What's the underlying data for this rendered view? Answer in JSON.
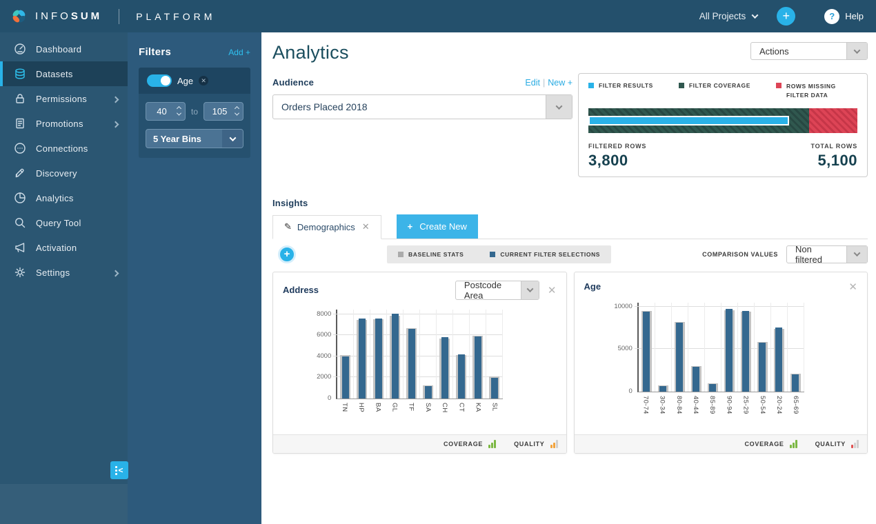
{
  "topbar": {
    "brand_light": "INFO",
    "brand_bold": "SUM",
    "product": "PLATFORM",
    "project_selector": "All Projects",
    "help_label": "Help"
  },
  "sidebar": {
    "items": [
      {
        "label": "Dashboard",
        "icon": "gauge",
        "active": false,
        "chevron": false
      },
      {
        "label": "Datasets",
        "icon": "database",
        "active": true,
        "chevron": false
      },
      {
        "label": "Permissions",
        "icon": "lock",
        "active": false,
        "chevron": true
      },
      {
        "label": "Promotions",
        "icon": "document",
        "active": false,
        "chevron": true
      },
      {
        "label": "Connections",
        "icon": "connections",
        "active": false,
        "chevron": false
      },
      {
        "label": "Discovery",
        "icon": "rocket",
        "active": false,
        "chevron": false
      },
      {
        "label": "Analytics",
        "icon": "pie",
        "active": false,
        "chevron": false
      },
      {
        "label": "Query Tool",
        "icon": "search",
        "active": false,
        "chevron": false
      },
      {
        "label": "Activation",
        "icon": "megaphone",
        "active": false,
        "chevron": false
      },
      {
        "label": "Settings",
        "icon": "gear",
        "active": false,
        "chevron": true
      }
    ]
  },
  "filters": {
    "title": "Filters",
    "add_label": "Add +",
    "filter_name": "Age",
    "min_value": "40",
    "to_label": "to",
    "max_value": "105",
    "bin_value": "5 Year Bins"
  },
  "page": {
    "title": "Analytics",
    "actions_label": "Actions"
  },
  "audience": {
    "title": "Audience",
    "edit_label": "Edit",
    "new_label": "New +",
    "selected": "Orders Placed 2018",
    "legend": [
      {
        "label": "FILTER RESULTS",
        "color": "#29b2e8"
      },
      {
        "label": "FILTER COVERAGE",
        "color": "#30584f"
      },
      {
        "label": "ROWS MISSING FILTER DATA",
        "color": "#dd4456"
      }
    ],
    "coverage_pct": 82,
    "results_pct": 74.5,
    "filtered_rows_label": "FILTERED ROWS",
    "filtered_rows": "3,800",
    "total_rows_label": "TOTAL ROWS",
    "total_rows": "5,100"
  },
  "insights": {
    "title": "Insights",
    "tabs": [
      {
        "label": "Demographics"
      },
      {
        "label": "Create New"
      }
    ],
    "legend": [
      {
        "label": "BASELINE STATS",
        "color": "#ababab"
      },
      {
        "label": "CURRENT FILTER SELECTIONS",
        "color": "#34688f"
      }
    ],
    "comparison_label": "COMPARISON VALUES",
    "comparison_value": "Non filtered",
    "coverage_label": "COVERAGE",
    "quality_label": "QUALITY"
  },
  "chart_data": [
    {
      "type": "bar",
      "title": "Address",
      "breakdown": "Postcode Area",
      "categories": [
        "TN",
        "HP",
        "BA",
        "GL",
        "TF",
        "SA",
        "CH",
        "CT",
        "KA",
        "SL"
      ],
      "series": [
        {
          "name": "Baseline stats",
          "color": "#c3c3c3",
          "values": [
            4150,
            7500,
            7550,
            7850,
            6700,
            1250,
            5700,
            4150,
            5950,
            2050
          ]
        },
        {
          "name": "Current filter selections",
          "color": "#34688f",
          "values": [
            4000,
            7600,
            7600,
            8050,
            6600,
            1150,
            5800,
            4200,
            5900,
            1950
          ]
        }
      ],
      "yticks": [
        0,
        2000,
        4000,
        6000,
        8000
      ],
      "ylim": [
        0,
        8500
      ],
      "grid": true,
      "coverage": {
        "bars": 3,
        "color": "#7cb843"
      },
      "quality": {
        "bars": 2,
        "color": "#f2a33c"
      }
    },
    {
      "type": "bar",
      "title": "Age",
      "breakdown": null,
      "categories": [
        "70-74",
        "30-34",
        "80-84",
        "40-44",
        "85-89",
        "90-94",
        "25-29",
        "50-54",
        "20-24",
        "65-69"
      ],
      "series": [
        {
          "name": "Baseline stats",
          "color": "#c3c3c3",
          "values": [
            9500,
            700,
            8150,
            2950,
            900,
            9600,
            9400,
            5800,
            7400,
            2050
          ]
        },
        {
          "name": "Current filter selections",
          "color": "#34688f",
          "values": [
            9400,
            650,
            8100,
            2900,
            850,
            9700,
            9450,
            5750,
            7500,
            2000
          ]
        }
      ],
      "yticks": [
        0,
        5000,
        10000
      ],
      "ylim": [
        0,
        10500
      ],
      "grid": true,
      "coverage": {
        "bars": 3,
        "color": "#7cb843"
      },
      "quality": {
        "bars": 1,
        "color": "#e05252"
      }
    }
  ]
}
